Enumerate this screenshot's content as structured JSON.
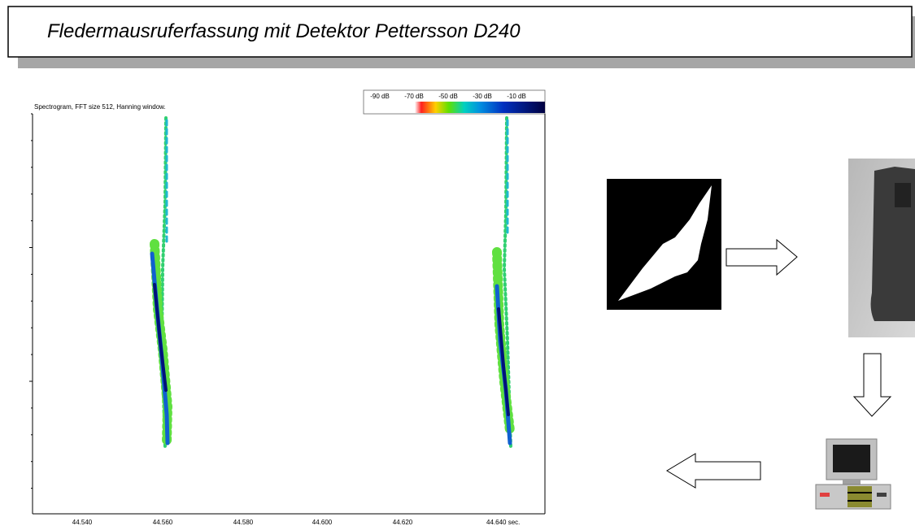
{
  "title": "Fledermausruferfassung mit Detektor Pettersson D240",
  "spectrogram": {
    "caption": "Spectrogram, FFT size 512, Hanning window.",
    "colorbar_labels": [
      "-90 dB",
      "-70 dB",
      "-50 dB",
      "-30 dB",
      "-10 dB"
    ],
    "x_tick_labels": [
      "44.540",
      "44.560",
      "44.580",
      "44.600",
      "44.620",
      "44.640 sec."
    ]
  }
}
